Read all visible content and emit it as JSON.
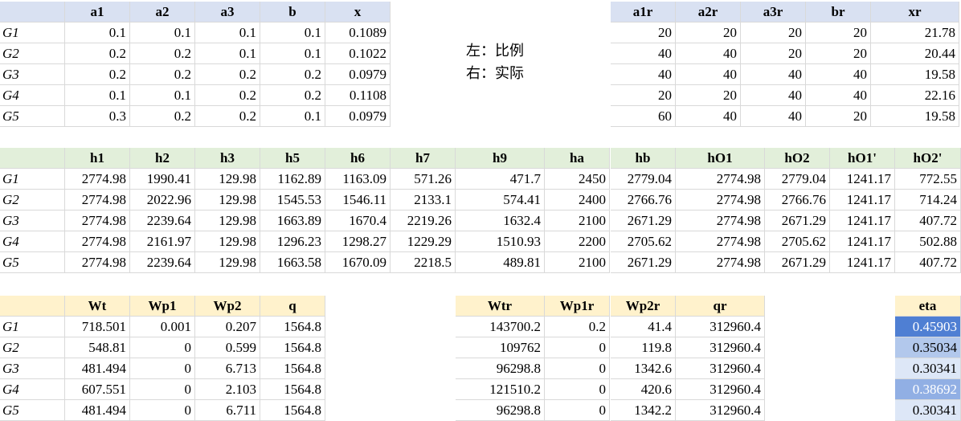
{
  "note": {
    "line1": "左：比例",
    "line2": "右：实际"
  },
  "row_labels": [
    "G1",
    "G2",
    "G3",
    "G4",
    "G5"
  ],
  "t1_left": {
    "headers": [
      "a1",
      "a2",
      "a3",
      "b",
      "x"
    ],
    "rows": [
      [
        "0.1",
        "0.1",
        "0.1",
        "0.1",
        "0.1089"
      ],
      [
        "0.2",
        "0.2",
        "0.1",
        "0.1",
        "0.1022"
      ],
      [
        "0.2",
        "0.2",
        "0.2",
        "0.2",
        "0.0979"
      ],
      [
        "0.1",
        "0.1",
        "0.2",
        "0.2",
        "0.1108"
      ],
      [
        "0.3",
        "0.2",
        "0.2",
        "0.1",
        "0.0979"
      ]
    ]
  },
  "t1_right": {
    "headers": [
      "a1r",
      "a2r",
      "a3r",
      "br",
      "xr"
    ],
    "rows": [
      [
        "20",
        "20",
        "20",
        "20",
        "21.78"
      ],
      [
        "40",
        "40",
        "20",
        "20",
        "20.44"
      ],
      [
        "40",
        "40",
        "40",
        "40",
        "19.58"
      ],
      [
        "20",
        "20",
        "40",
        "40",
        "22.16"
      ],
      [
        "60",
        "40",
        "40",
        "20",
        "19.58"
      ]
    ]
  },
  "t2": {
    "headers": [
      "h1",
      "h2",
      "h3",
      "h5",
      "h6",
      "h7",
      "h9",
      "ha",
      "hb",
      "hO1",
      "hO2",
      "hO1'",
      "hO2'"
    ],
    "rows": [
      [
        "2774.98",
        "1990.41",
        "129.98",
        "1162.89",
        "1163.09",
        "571.26",
        "471.7",
        "2450",
        "2779.04",
        "2774.98",
        "2779.04",
        "1241.17",
        "772.55"
      ],
      [
        "2774.98",
        "2022.96",
        "129.98",
        "1545.53",
        "1546.11",
        "2133.1",
        "574.41",
        "2400",
        "2766.76",
        "2774.98",
        "2766.76",
        "1241.17",
        "714.24"
      ],
      [
        "2774.98",
        "2239.64",
        "129.98",
        "1663.89",
        "1670.4",
        "2219.26",
        "1632.4",
        "2100",
        "2671.29",
        "2774.98",
        "2671.29",
        "1241.17",
        "407.72"
      ],
      [
        "2774.98",
        "2161.97",
        "129.98",
        "1296.23",
        "1298.27",
        "1229.29",
        "1510.93",
        "2200",
        "2705.62",
        "2774.98",
        "2705.62",
        "1241.17",
        "502.88"
      ],
      [
        "2774.98",
        "2239.64",
        "129.98",
        "1663.58",
        "1670.09",
        "2218.5",
        "489.81",
        "2100",
        "2671.29",
        "2774.98",
        "2671.29",
        "1241.17",
        "407.72"
      ]
    ]
  },
  "t3_left": {
    "headers": [
      "Wt",
      "Wp1",
      "Wp2",
      "q"
    ],
    "rows": [
      [
        "718.501",
        "0.001",
        "0.207",
        "1564.8"
      ],
      [
        "548.81",
        "0",
        "0.599",
        "1564.8"
      ],
      [
        "481.494",
        "0",
        "6.713",
        "1564.8"
      ],
      [
        "607.551",
        "0",
        "2.103",
        "1564.8"
      ],
      [
        "481.494",
        "0",
        "6.711",
        "1564.8"
      ]
    ]
  },
  "t3_mid": {
    "headers": [
      "Wtr",
      "Wp1r",
      "Wp2r",
      "qr"
    ],
    "rows": [
      [
        "143700.2",
        "0.2",
        "41.4",
        "312960.4"
      ],
      [
        "109762",
        "0",
        "119.8",
        "312960.4"
      ],
      [
        "96298.8",
        "0",
        "1342.6",
        "312960.4"
      ],
      [
        "121510.2",
        "0",
        "420.6",
        "312960.4"
      ],
      [
        "96298.8",
        "0",
        "1342.2",
        "312960.4"
      ]
    ]
  },
  "eta": {
    "header": "eta",
    "values": [
      "0.45903",
      "0.35034",
      "0.30341",
      "0.38692",
      "0.30341"
    ],
    "levels": [
      0.45903,
      0.35034,
      0.30341,
      0.38692,
      0.30341
    ],
    "scale_colors": {
      "low": "#dde7f7",
      "high": "#4f7fd3"
    }
  }
}
